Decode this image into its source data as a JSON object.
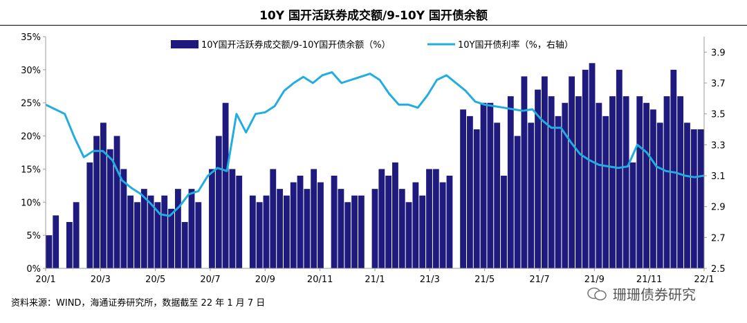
{
  "chart_data": {
    "type": "bar+line",
    "title": "10Y 国开活跃券成交额/9-10Y 国开债余额",
    "legend_position": "top",
    "x_tick_labels": [
      "20/1",
      "20/3",
      "20/5",
      "20/7",
      "20/9",
      "20/11",
      "21/1",
      "21/3",
      "21/5",
      "21/7",
      "21/9",
      "21/11",
      "22/1"
    ],
    "left_axis": {
      "ylim": [
        0,
        35
      ],
      "ticks": [
        "0%",
        "5%",
        "10%",
        "15%",
        "20%",
        "25%",
        "30%",
        "35%"
      ]
    },
    "right_axis": {
      "ylim": [
        2.5,
        4.0
      ],
      "ticks": [
        "2.5",
        "2.7",
        "2.9",
        "3.1",
        "3.3",
        "3.5",
        "3.7",
        "3.9"
      ]
    },
    "series": [
      {
        "name": "10Y国开活跃券成交额/9-10Y国开债余额（%）",
        "kind": "bar",
        "axis": "left",
        "color": "#1E1A7E",
        "values": [
          5,
          8,
          0,
          7,
          10,
          0,
          16,
          20,
          22,
          18,
          20,
          15,
          11,
          10,
          12,
          11,
          10,
          11,
          9,
          12,
          7,
          12,
          10,
          0,
          15,
          20,
          25,
          15,
          14,
          0,
          11,
          10,
          11,
          15,
          12,
          11,
          13,
          14,
          12,
          15,
          13,
          0,
          14,
          12,
          10,
          11,
          11,
          0,
          12,
          15,
          14,
          16,
          12,
          10,
          13,
          11,
          15,
          15,
          13,
          14,
          0,
          24,
          23,
          21,
          25,
          25,
          22,
          14,
          26,
          20,
          29,
          22,
          27,
          29,
          26,
          23,
          25,
          29,
          26,
          30,
          31,
          25,
          23,
          26,
          30,
          26,
          16,
          26,
          25,
          24,
          22,
          26,
          30,
          26,
          22,
          21,
          21
        ],
        "note": "approximate values, read visually (one bar ≈ one week; 0 = gap)"
      },
      {
        "name": "10Y国开债利率（%，右轴）",
        "kind": "line",
        "axis": "right",
        "color": "#22ADE0",
        "values": [
          3.56,
          3.53,
          3.5,
          3.35,
          3.22,
          3.26,
          3.26,
          3.2,
          3.07,
          3.02,
          2.98,
          2.92,
          2.85,
          2.84,
          2.9,
          2.98,
          3.0,
          3.1,
          3.15,
          3.13,
          3.5,
          3.38,
          3.5,
          3.51,
          3.55,
          3.65,
          3.7,
          3.74,
          3.7,
          3.75,
          3.77,
          3.7,
          3.72,
          3.74,
          3.76,
          3.72,
          3.63,
          3.56,
          3.56,
          3.54,
          3.62,
          3.72,
          3.75,
          3.7,
          3.65,
          3.58,
          3.56,
          3.55,
          3.54,
          3.53,
          3.52,
          3.53,
          3.46,
          3.41,
          3.41,
          3.32,
          3.24,
          3.2,
          3.17,
          3.16,
          3.15,
          3.16,
          3.3,
          3.25,
          3.16,
          3.13,
          3.12,
          3.1,
          3.09,
          3.1
        ],
        "note": "approximate values, read visually (≈ weekly)"
      }
    ]
  },
  "footer": {
    "source": "资料来源：WIND，海通证券研究所，数据截至 22 年 1 月 7 日",
    "watermark": "珊珊债券研究"
  },
  "colors": {
    "bar": "#1E1A7E",
    "line": "#22ADE0",
    "axis": "#999999"
  }
}
